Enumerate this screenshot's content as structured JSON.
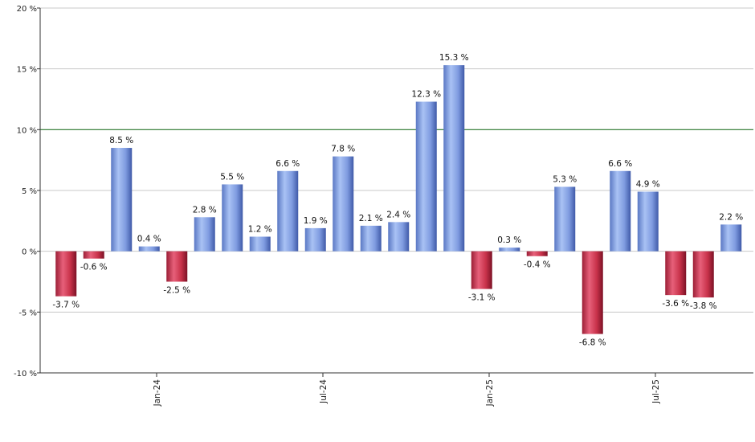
{
  "chart_data": {
    "type": "bar",
    "title": "",
    "xlabel": "",
    "ylabel": "",
    "ylim": [
      -10,
      20
    ],
    "yticks": [
      -10,
      -5,
      0,
      5,
      10,
      15,
      20
    ],
    "ytick_suffix": " %",
    "grid": true,
    "legend": "none",
    "reference_line": {
      "value": 10,
      "color": "#2e7d32"
    },
    "x_tick_labels": [
      {
        "label": "Jan-24",
        "index": 4
      },
      {
        "label": "Jul-24",
        "index": 10
      },
      {
        "label": "Jan-25",
        "index": 16
      },
      {
        "label": "Jul-25",
        "index": 22
      }
    ],
    "values": [
      -3.7,
      -0.6,
      8.5,
      0.4,
      -2.5,
      2.8,
      5.5,
      1.2,
      6.6,
      1.9,
      7.8,
      2.1,
      2.4,
      12.3,
      15.3,
      -3.1,
      0.3,
      -0.4,
      5.3,
      -6.8,
      6.6,
      4.9,
      -3.6,
      -3.8,
      2.2
    ],
    "labels": [
      "-3.7 %",
      "-0.6 %",
      "8.5 %",
      "0.4 %",
      "-2.5 %",
      "2.8 %",
      "5.5 %",
      "1.2 %",
      "6.6 %",
      "1.9 %",
      "7.8 %",
      "2.1 %",
      "2.4 %",
      "12.3 %",
      "15.3 %",
      "-3.1 %",
      "0.3 %",
      "-0.4 %",
      "5.3 %",
      "-6.8 %",
      "6.6 %",
      "4.9 %",
      "-3.6 %",
      "-3.8 %",
      "2.2 %"
    ],
    "colors": {
      "positive": "#7f9fe0",
      "negative": "#c8324a",
      "grid": "#c8c8c8",
      "axis": "#333333"
    }
  }
}
